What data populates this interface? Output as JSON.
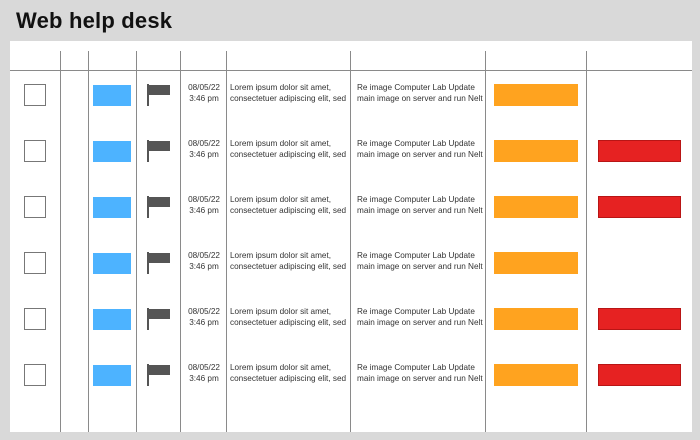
{
  "app": {
    "title": "Web help desk"
  },
  "colors": {
    "background": "#d9d9d9",
    "panel": "#ffffff",
    "divider": "#8a8a8a",
    "tag_blue": "#4db3ff",
    "priority_orange": "#ffa31f",
    "alert_red": "#e62222",
    "flag_gray": "#555555"
  },
  "icons": {
    "row_flag": "flag-icon",
    "row_checkbox": "checkbox-icon"
  },
  "table": {
    "rows": [
      {
        "date": "08/05/22",
        "time": "3:46 pm",
        "description_line1": "Lorem ipsum dolor sit amet,",
        "description_line2": "consectetuer adipiscing elit, sed",
        "subject_line1": "Re image Computer Lab Update",
        "subject_line2": "main image on server and run Nelt",
        "has_alert": false
      },
      {
        "date": "08/05/22",
        "time": "3:46 pm",
        "description_line1": "Lorem ipsum dolor sit amet,",
        "description_line2": "consectetuer adipiscing elit, sed",
        "subject_line1": "Re image Computer Lab Update",
        "subject_line2": "main image on server and run Nelt",
        "has_alert": true
      },
      {
        "date": "08/05/22",
        "time": "3:46 pm",
        "description_line1": "Lorem ipsum dolor sit amet,",
        "description_line2": "consectetuer adipiscing elit, sed",
        "subject_line1": "Re image Computer Lab Update",
        "subject_line2": "main image on server and run Nelt",
        "has_alert": true
      },
      {
        "date": "08/05/22",
        "time": "3:46 pm",
        "description_line1": "Lorem ipsum dolor sit amet,",
        "description_line2": "consectetuer adipiscing elit, sed",
        "subject_line1": "Re image Computer Lab Update",
        "subject_line2": "main image on server and run Nelt",
        "has_alert": false
      },
      {
        "date": "08/05/22",
        "time": "3:46 pm",
        "description_line1": "Lorem ipsum dolor sit amet,",
        "description_line2": "consectetuer adipiscing elit, sed",
        "subject_line1": "Re image Computer Lab Update",
        "subject_line2": "main image on server and run Nelt",
        "has_alert": true
      },
      {
        "date": "08/05/22",
        "time": "3:46 pm",
        "description_line1": "Lorem ipsum dolor sit amet,",
        "description_line2": "consectetuer adipiscing elit, sed",
        "subject_line1": "Re image Computer Lab Update",
        "subject_line2": "main image on server and run Nelt",
        "has_alert": true
      }
    ]
  }
}
